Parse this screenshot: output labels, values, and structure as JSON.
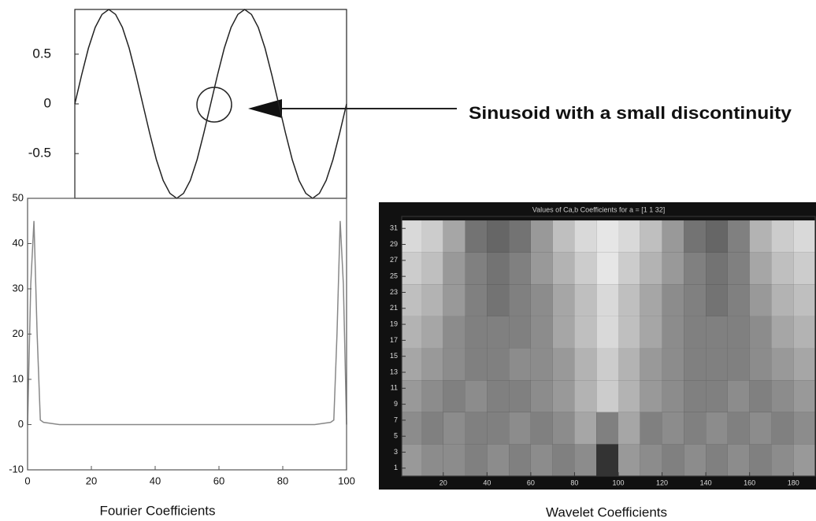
{
  "chart_data": [
    {
      "type": "line",
      "annotation": "Sinusoid with a small discontinuity",
      "color": "#222222",
      "x": [
        0,
        0.05,
        0.1,
        0.15,
        0.2,
        0.25,
        0.3,
        0.35,
        0.4,
        0.45,
        0.5,
        0.55,
        0.6,
        0.65,
        0.7,
        0.75,
        0.8,
        0.85,
        0.9,
        0.95,
        1,
        1.05,
        1.1,
        1.15,
        1.2,
        1.25,
        1.3,
        1.35,
        1.4,
        1.45,
        1.5,
        1.55,
        1.6,
        1.65,
        1.7,
        1.75,
        1.8,
        1.85,
        1.9,
        1.95,
        2
      ],
      "values": [
        0,
        0.29,
        0.56,
        0.77,
        0.9,
        0.95,
        0.9,
        0.77,
        0.56,
        0.29,
        0,
        -0.29,
        -0.56,
        -0.77,
        -0.9,
        -0.95,
        -0.9,
        -0.77,
        -0.56,
        -0.29,
        0,
        0.29,
        0.56,
        0.77,
        0.9,
        0.95,
        0.9,
        0.77,
        0.56,
        0.29,
        0,
        -0.29,
        -0.56,
        -0.77,
        -0.9,
        -0.95,
        -0.9,
        -0.77,
        -0.56,
        -0.29,
        0
      ],
      "xlim": [
        0,
        2
      ],
      "ylim": [
        -0.95,
        0.95
      ],
      "yticks": [
        0.5,
        0,
        -0.5
      ]
    },
    {
      "type": "line",
      "xlabel": "Fourier Coefficients",
      "color": "#888888",
      "x": [
        0,
        1,
        2,
        3,
        4,
        5,
        10,
        20,
        30,
        40,
        50,
        60,
        70,
        80,
        90,
        95,
        96,
        97,
        98,
        99,
        100
      ],
      "values": [
        0,
        31,
        45,
        20,
        1,
        0.5,
        0,
        0,
        0,
        0,
        0,
        0,
        0,
        0,
        0,
        0.5,
        1,
        20,
        45,
        31,
        0
      ],
      "xlim": [
        0,
        100
      ],
      "ylim": [
        -10,
        50
      ],
      "xticks": [
        0,
        20,
        40,
        60,
        80,
        100
      ],
      "yticks": [
        -10,
        0,
        10,
        20,
        30,
        40,
        50
      ]
    },
    {
      "type": "heatmap",
      "title": "Values of Ca,b Coefficients for a = [1 1 32]",
      "xlabel": "Wavelet Coefficients",
      "colormap": "gray",
      "xbins": [
        0,
        10,
        20,
        30,
        40,
        50,
        60,
        70,
        80,
        90,
        100,
        110,
        120,
        130,
        140,
        150,
        160,
        170,
        180,
        190
      ],
      "ybins": [
        0,
        4,
        8,
        12,
        16,
        20,
        24,
        28,
        32
      ],
      "z": [
        [
          0.6,
          0.55,
          0.55,
          0.5,
          0.55,
          0.5,
          0.55,
          0.5,
          0.55,
          0.2,
          0.6,
          0.55,
          0.5,
          0.55,
          0.5,
          0.55,
          0.5,
          0.55,
          0.6
        ],
        [
          0.55,
          0.5,
          0.55,
          0.5,
          0.5,
          0.55,
          0.5,
          0.55,
          0.65,
          0.5,
          0.65,
          0.5,
          0.55,
          0.5,
          0.55,
          0.5,
          0.55,
          0.5,
          0.55
        ],
        [
          0.6,
          0.55,
          0.5,
          0.55,
          0.5,
          0.5,
          0.55,
          0.6,
          0.7,
          0.8,
          0.7,
          0.6,
          0.55,
          0.5,
          0.5,
          0.55,
          0.5,
          0.55,
          0.6
        ],
        [
          0.65,
          0.6,
          0.55,
          0.5,
          0.5,
          0.55,
          0.55,
          0.6,
          0.7,
          0.8,
          0.7,
          0.6,
          0.55,
          0.5,
          0.5,
          0.5,
          0.55,
          0.6,
          0.65
        ],
        [
          0.7,
          0.65,
          0.55,
          0.5,
          0.5,
          0.5,
          0.55,
          0.65,
          0.75,
          0.85,
          0.75,
          0.65,
          0.55,
          0.5,
          0.5,
          0.5,
          0.55,
          0.65,
          0.7
        ],
        [
          0.75,
          0.7,
          0.6,
          0.5,
          0.45,
          0.5,
          0.55,
          0.65,
          0.75,
          0.85,
          0.75,
          0.65,
          0.55,
          0.5,
          0.45,
          0.5,
          0.6,
          0.7,
          0.75
        ],
        [
          0.8,
          0.75,
          0.6,
          0.5,
          0.45,
          0.5,
          0.6,
          0.7,
          0.8,
          0.9,
          0.8,
          0.7,
          0.6,
          0.5,
          0.45,
          0.5,
          0.65,
          0.75,
          0.8
        ],
        [
          0.85,
          0.8,
          0.65,
          0.45,
          0.4,
          0.45,
          0.6,
          0.75,
          0.85,
          0.9,
          0.85,
          0.75,
          0.6,
          0.45,
          0.4,
          0.5,
          0.7,
          0.8,
          0.85
        ]
      ],
      "xlim": [
        1,
        190
      ],
      "ylim": [
        0,
        32.5
      ],
      "xticks": [
        20,
        40,
        60,
        80,
        100,
        120,
        140,
        160,
        180
      ],
      "yticks": [
        1,
        3,
        5,
        7,
        9,
        11,
        13,
        15,
        17,
        19,
        21,
        23,
        25,
        27,
        29,
        31
      ]
    }
  ]
}
